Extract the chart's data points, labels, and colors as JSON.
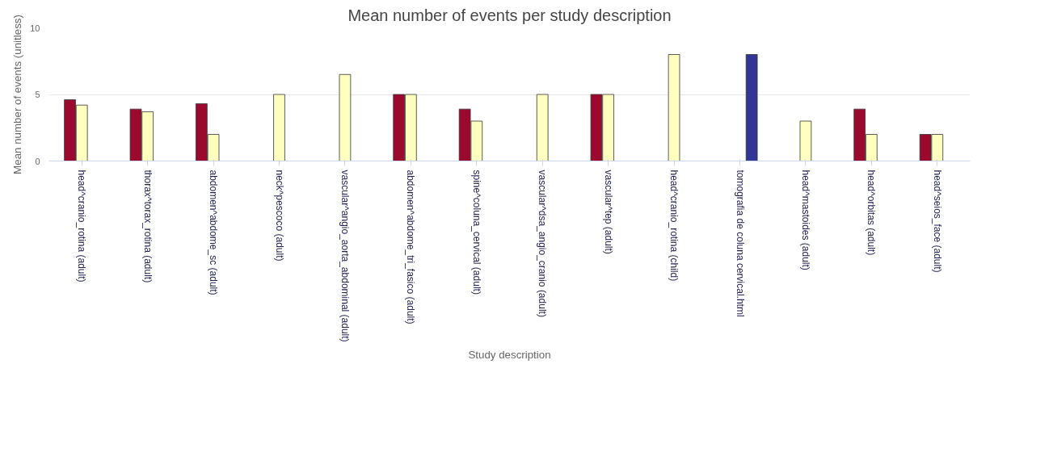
{
  "chart_data": {
    "type": "bar",
    "title": "Mean number of events per study description",
    "xlabel": "Study description",
    "ylabel": "Mean number of events (unitless)",
    "categories": [
      "head^cranio_rotina (adult)",
      "thorax^torax_rotina (adult)",
      "abdomen^abdome_sc (adult)",
      "neck^pescoco (adult)",
      "vascular^angio_aorta_abdominal (adult)",
      "abdomen^abdome_tri_fasico (adult)",
      "spine^coluna_cervical (adult)",
      "vascular^dsa_angio_cranio (adult)",
      "vascular^tep (adult)",
      "head^cranio_rotina (child)",
      "tomografia de coluna cervical.html",
      "head^mastoides (adult)",
      "head^orbitas (adult)",
      "head^seios_face (adult)"
    ],
    "series": [
      {
        "color": "#9b0a2e",
        "values": [
          4.6,
          3.9,
          4.3,
          null,
          null,
          5.0,
          3.9,
          null,
          5.0,
          null,
          null,
          null,
          3.9,
          2.0
        ]
      },
      {
        "color": "#ffffbf",
        "values": [
          4.2,
          3.7,
          2.0,
          5.0,
          6.5,
          5.0,
          3.0,
          5.0,
          5.0,
          8.0,
          null,
          3.0,
          2.0,
          2.0
        ]
      },
      {
        "color": "#313695",
        "values": [
          null,
          null,
          null,
          null,
          null,
          null,
          null,
          null,
          null,
          null,
          8.0,
          null,
          null,
          null
        ]
      }
    ],
    "ylim": [
      0,
      10
    ],
    "yticks": [
      0,
      5,
      10
    ],
    "grid": "y"
  }
}
